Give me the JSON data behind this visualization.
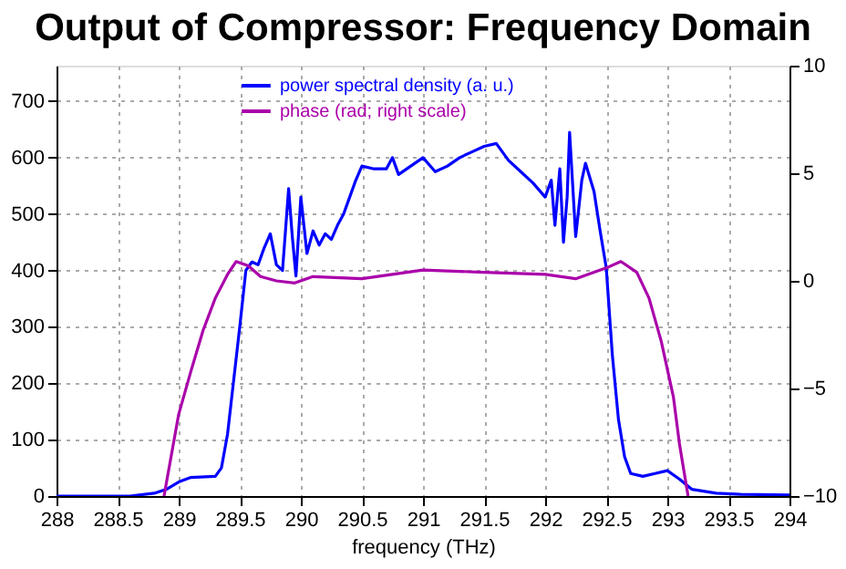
{
  "chart_data": {
    "type": "line",
    "title": "Output of Compressor: Frequency Domain",
    "xlabel": "frequency (THz)",
    "xlim": [
      288,
      294
    ],
    "xticks": [
      288,
      288.5,
      289,
      289.5,
      290,
      290.5,
      291,
      291.5,
      292,
      292.5,
      293,
      293.5,
      294
    ],
    "ylim": [
      0,
      763
    ],
    "yticks": [
      0,
      100,
      200,
      300,
      400,
      500,
      600,
      700
    ],
    "y2lim": [
      -10,
      10
    ],
    "y2ticks": [
      -10,
      -5,
      0,
      5,
      10
    ],
    "grid": true,
    "legend": "top",
    "marker": "none",
    "line_style": "solid",
    "series": [
      {
        "name": "power spectral density (a. u.)",
        "color": "#0000ff",
        "x": [
          288,
          288.6,
          288.8,
          288.9,
          289.0,
          289.1,
          289.3,
          289.35,
          289.4,
          289.5,
          289.55,
          289.6,
          289.65,
          289.7,
          289.75,
          289.8,
          289.85,
          289.9,
          289.93,
          289.96,
          290.0,
          290.05,
          290.1,
          290.15,
          290.2,
          290.25,
          290.3,
          290.35,
          290.4,
          290.45,
          290.5,
          290.6,
          290.7,
          290.75,
          290.8,
          290.9,
          291.0,
          291.1,
          291.2,
          291.3,
          291.4,
          291.5,
          291.6,
          291.65,
          291.7,
          291.8,
          291.9,
          292.0,
          292.05,
          292.08,
          292.12,
          292.15,
          292.18,
          292.2,
          292.25,
          292.3,
          292.33,
          292.4,
          292.45,
          292.5,
          292.55,
          292.6,
          292.65,
          292.7,
          292.8,
          292.9,
          293.0,
          293.1,
          293.2,
          293.4,
          293.6,
          294
        ],
        "values": [
          0,
          0,
          5,
          12,
          25,
          33,
          35,
          50,
          110,
          300,
          400,
          415,
          410,
          440,
          465,
          410,
          400,
          545,
          460,
          390,
          530,
          430,
          470,
          445,
          465,
          455,
          480,
          500,
          530,
          560,
          585,
          580,
          580,
          600,
          570,
          585,
          600,
          575,
          585,
          600,
          610,
          620,
          625,
          610,
          595,
          575,
          555,
          530,
          560,
          480,
          580,
          450,
          530,
          645,
          460,
          560,
          590,
          540,
          470,
          405,
          250,
          136,
          70,
          40,
          35,
          40,
          45,
          30,
          12,
          5,
          3,
          2
        ]
      },
      {
        "name": "phase (rad; right scale)",
        "color": "#aa00aa",
        "axis": "y2",
        "x": [
          288.88,
          289.0,
          289.1,
          289.2,
          289.3,
          289.4,
          289.47,
          289.57,
          289.67,
          289.8,
          289.95,
          290.1,
          290.5,
          291.0,
          291.5,
          292.0,
          292.25,
          292.5,
          292.62,
          292.75,
          292.85,
          292.95,
          293.05,
          293.1,
          293.17
        ],
        "values": [
          -10,
          -6.2,
          -4.2,
          -2.3,
          -0.8,
          0.3,
          0.9,
          0.7,
          0.2,
          0.0,
          -0.1,
          0.2,
          0.1,
          0.5,
          0.4,
          0.3,
          0.1,
          0.6,
          0.9,
          0.4,
          -0.8,
          -2.8,
          -5.4,
          -7.6,
          -10
        ]
      }
    ]
  }
}
